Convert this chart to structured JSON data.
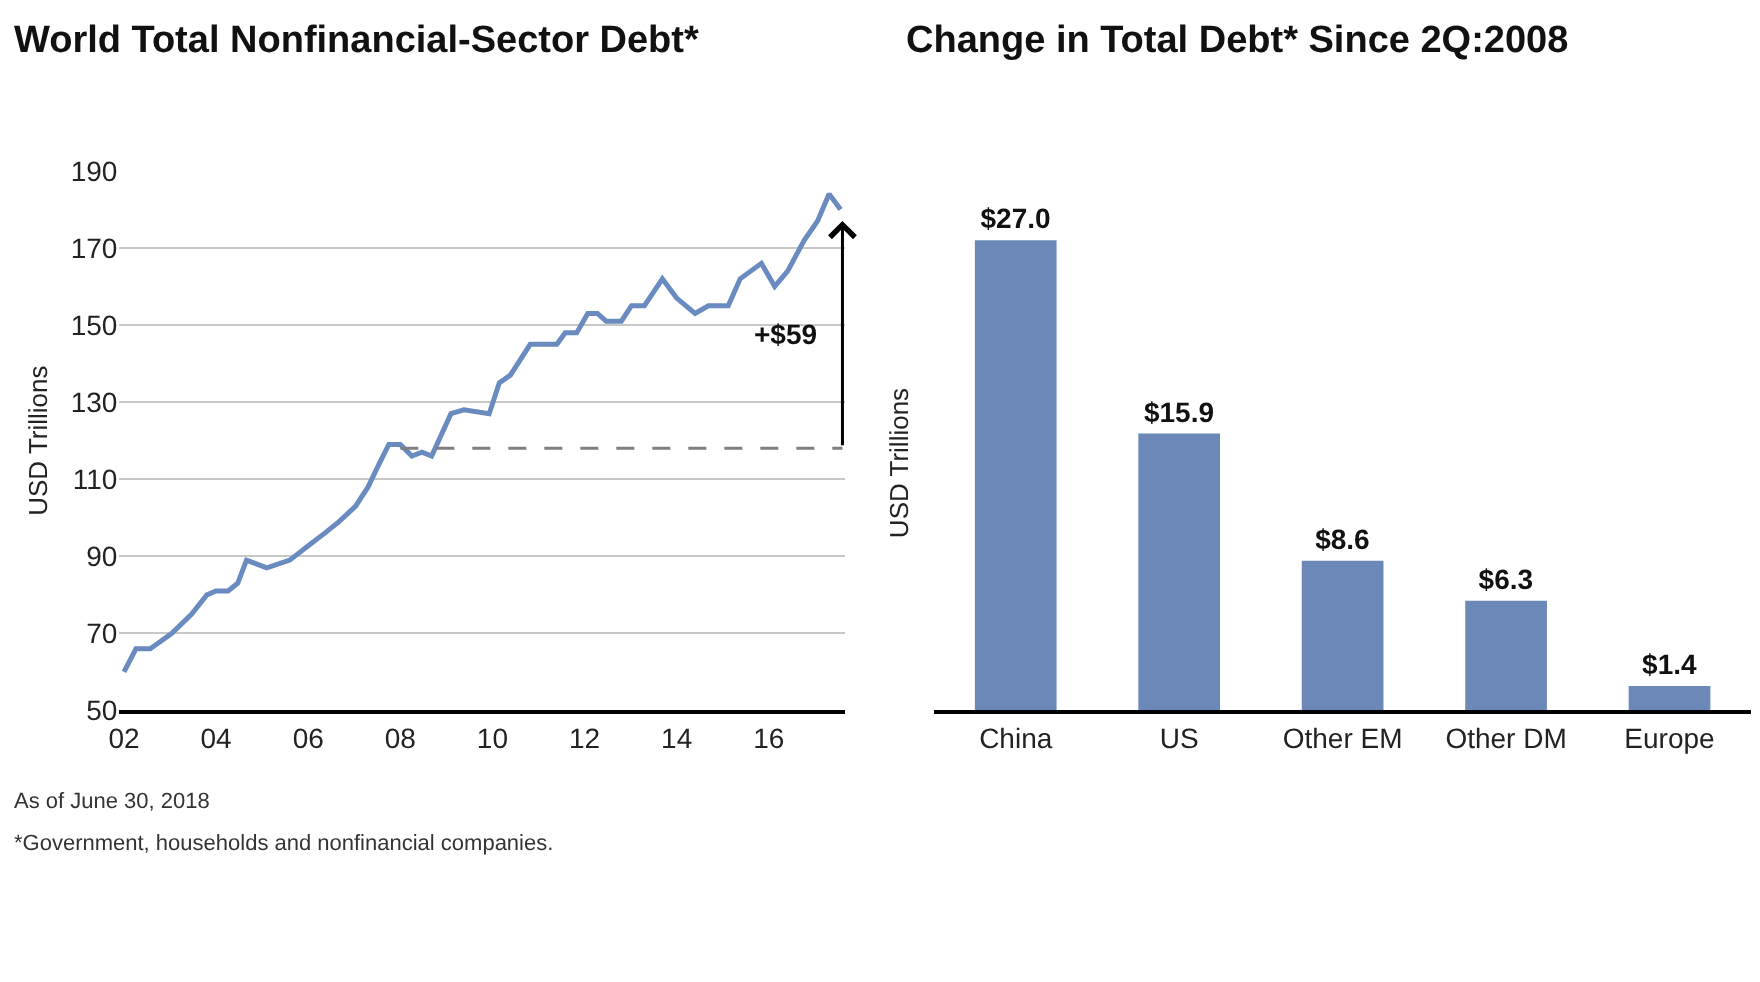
{
  "chart_data": [
    {
      "type": "line",
      "title": "World Total Nonfinancial-Sector Debt*",
      "ylabel": "USD Trillions",
      "x": [
        2002.0,
        2002.26,
        2002.57,
        2003.04,
        2003.47,
        2003.8,
        2004.0,
        2004.26,
        2004.47,
        2004.66,
        2005.1,
        2005.6,
        2006.03,
        2006.36,
        2006.67,
        2007.03,
        2007.3,
        2007.5,
        2007.75,
        2008.0,
        2008.25,
        2008.47,
        2008.68,
        2009.1,
        2009.38,
        2009.93,
        2010.15,
        2010.39,
        2010.82,
        2011.4,
        2011.58,
        2011.83,
        2012.07,
        2012.28,
        2012.47,
        2012.8,
        2013.02,
        2013.3,
        2013.69,
        2014.0,
        2014.4,
        2014.69,
        2015.12,
        2015.38,
        2015.84,
        2016.13,
        2016.41,
        2016.77,
        2017.06,
        2017.31,
        2017.56
      ],
      "series": [
        {
          "color": "#6a8bc0",
          "values": [
            60,
            66,
            66,
            70,
            75,
            80,
            81,
            81,
            83,
            89,
            87,
            89,
            93,
            96,
            99,
            103,
            108,
            113,
            119,
            119,
            116,
            117,
            116,
            127,
            128,
            127,
            135,
            137,
            145,
            145,
            148,
            148,
            153,
            153,
            151,
            151,
            155,
            155,
            162,
            157,
            153,
            155,
            155,
            162,
            166,
            160,
            164,
            172,
            177,
            184,
            180
          ]
        },
        {
          "type": "line",
          "color": "#808080",
          "line_style": "dashed",
          "x": [
            2008.0,
            2017.6
          ],
          "values": [
            118,
            118
          ]
        }
      ],
      "annotations": [
        "+$59",
        "As of June 30, 2018",
        "*Government, households and nonfinancial companies."
      ],
      "xlim": [
        2001.9,
        2017.65
      ],
      "xticks": [
        {
          "value": 2002,
          "label": "02"
        },
        {
          "value": 2004,
          "label": "04"
        },
        {
          "value": 2006,
          "label": "06"
        },
        {
          "value": 2008,
          "label": "08"
        },
        {
          "value": 2010,
          "label": "10"
        },
        {
          "value": 2012,
          "label": "12"
        },
        {
          "value": 2014,
          "label": "14"
        },
        {
          "value": 2016,
          "label": "16"
        }
      ],
      "ylim": [
        50,
        190
      ],
      "yticks": [
        50,
        70,
        90,
        110,
        130,
        150,
        170,
        190
      ],
      "grid": "y",
      "marker": "none",
      "line_style": "solid"
    },
    {
      "type": "bar",
      "title": "Change in Total Debt* Since 2Q:2008",
      "ylabel": "USD Trillions",
      "categories": [
        "China",
        "US",
        "Other EM",
        "Other DM",
        "Europe"
      ],
      "values": [
        27.0,
        15.9,
        8.6,
        6.3,
        1.4
      ],
      "value_labels": [
        "$27.0",
        "$15.9",
        "$8.6",
        "$6.3",
        "$1.4"
      ],
      "color": "#6b88b8",
      "tick_labels": "x",
      "grid": false
    }
  ]
}
